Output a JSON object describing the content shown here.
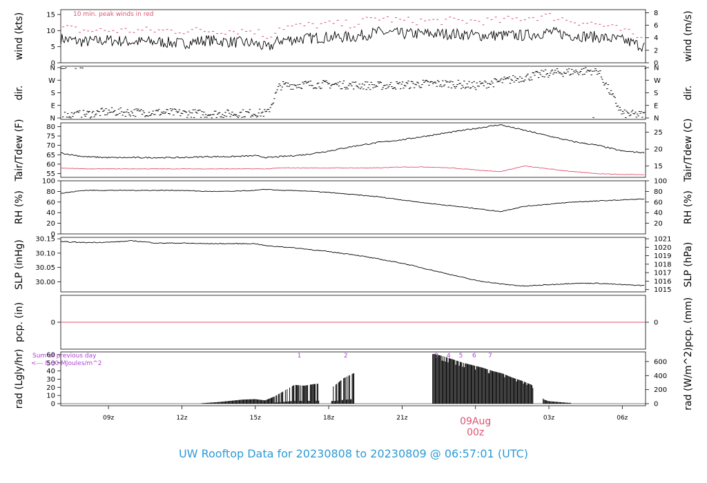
{
  "title": "UW Rooftop Data for 20230808  to  20230809 @ 06:57:01  (UTC)",
  "colors": {
    "title": "#2b9ad6",
    "peak": "#e0506e",
    "dewpoint": "#e0506e",
    "pcp_line": "#e0506e",
    "day_label": "#e0506e",
    "annotation": "#b040d8",
    "data": "#000000"
  },
  "annotations": {
    "peak_note": "10 min. peak winds in red",
    "sum_line1": "Sum of previous day",
    "sum_line2": "<--- 8.80 MJoules/m^2",
    "day_label": "09Aug",
    "day_label_z": "00z"
  },
  "chart_data": [
    {
      "type": "line",
      "name": "wind",
      "ylabel": "wind (kts)",
      "ylabel_right": "wind (m/s)",
      "ylim": [
        0,
        16.5
      ],
      "yticks": [
        "0",
        "5",
        "10",
        "15"
      ],
      "yticks_right": [
        "0",
        "2",
        "4",
        "6",
        "8"
      ],
      "x_hours": [
        7,
        8,
        9,
        10,
        11,
        12,
        13,
        14,
        15,
        15.5,
        16,
        17,
        18,
        19,
        20,
        21,
        22,
        23,
        24,
        25,
        26,
        27,
        28,
        29,
        30,
        30.95
      ],
      "series": [
        {
          "name": "wind",
          "values": [
            7.5,
            6.5,
            7,
            6.5,
            6.5,
            6,
            7,
            6.5,
            6,
            4.5,
            7,
            7.5,
            8,
            8,
            9.5,
            9,
            9,
            9,
            8.5,
            8.5,
            8.5,
            9.5,
            8.5,
            8,
            7,
            5
          ]
        },
        {
          "name": "10 min. peak winds",
          "values": [
            11,
            10,
            10,
            10,
            10,
            10,
            10,
            10,
            10,
            8,
            11,
            11.5,
            12,
            12,
            14,
            13,
            13,
            13,
            13,
            13,
            14,
            14.5,
            13,
            12,
            10,
            7
          ]
        }
      ]
    },
    {
      "type": "scatter",
      "name": "direction",
      "ylabel": "dir.",
      "ylabel_right": "dir.",
      "yticks": [
        "N",
        "E",
        "S",
        "W",
        "N"
      ],
      "x_hours": [
        7,
        8,
        9,
        10,
        11,
        12,
        13,
        14,
        15,
        15.5,
        16,
        17,
        18,
        19,
        20,
        21,
        22,
        23,
        24,
        25,
        26,
        27,
        28,
        29,
        30,
        30.95
      ],
      "values_deg": [
        20,
        25,
        45,
        40,
        40,
        35,
        30,
        30,
        35,
        35,
        230,
        240,
        240,
        235,
        230,
        235,
        245,
        245,
        230,
        260,
        290,
        320,
        330,
        340,
        30,
        20
      ]
    },
    {
      "type": "line",
      "name": "temperature",
      "ylabel": "Tair/Tdew (F)",
      "ylabel_right": "Tair/Tdew (C)",
      "ylim": [
        53,
        82
      ],
      "yticks": [
        "55",
        "60",
        "65",
        "70",
        "75",
        "80"
      ],
      "yticks_right": [
        "15",
        "20",
        "25"
      ],
      "x_hours": [
        7,
        8,
        9,
        10,
        11,
        12,
        13,
        14,
        15,
        15.5,
        16,
        17,
        18,
        19,
        20,
        21,
        22,
        23,
        24,
        25,
        26,
        27,
        28,
        29,
        30,
        30.95
      ],
      "series": [
        {
          "name": "Tair",
          "values": [
            66,
            64,
            63.5,
            63.5,
            63.5,
            63.5,
            64,
            64,
            64.5,
            63.5,
            64,
            65,
            67,
            69.5,
            71.5,
            73,
            75,
            77,
            79,
            81,
            78,
            75,
            72,
            70,
            67,
            66
          ]
        },
        {
          "name": "Tdew",
          "values": [
            58,
            57.5,
            57.5,
            57.5,
            57.5,
            57.5,
            57.5,
            57.5,
            57.5,
            57.5,
            58,
            58,
            58,
            58,
            58,
            58.5,
            58.5,
            58,
            57,
            56,
            59,
            57.5,
            56,
            55,
            54.5,
            54.5
          ]
        }
      ]
    },
    {
      "type": "line",
      "name": "relative humidity",
      "ylabel": "RH (%)",
      "ylabel_right": "RH (%)",
      "ylim": [
        0,
        100
      ],
      "yticks": [
        "0",
        "20",
        "40",
        "60",
        "80",
        "100"
      ],
      "yticks_right": [
        "20",
        "40",
        "60",
        "80",
        "100"
      ],
      "x_hours": [
        7,
        8,
        9,
        10,
        11,
        12,
        13,
        14,
        15,
        15.5,
        16,
        17,
        18,
        19,
        20,
        21,
        22,
        23,
        24,
        25,
        26,
        27,
        28,
        29,
        30,
        30.95
      ],
      "series": [
        {
          "name": "RH",
          "values": [
            76,
            82,
            82,
            82,
            82,
            82,
            80,
            80,
            82,
            84,
            82,
            81,
            78,
            74,
            70,
            64,
            58,
            53,
            48,
            42,
            52,
            56,
            60,
            62,
            64,
            66
          ]
        }
      ]
    },
    {
      "type": "line",
      "name": "sea level pressure",
      "ylabel": "SLP (inHg)",
      "ylabel_right": "SLP (hPa)",
      "ylim": [
        29.965,
        30.155
      ],
      "yticks": [
        "30.00",
        "30.05",
        "30.10",
        "30.15"
      ],
      "yticks_right": [
        "1015",
        "1016",
        "1017",
        "1018",
        "1019",
        "1020",
        "1021"
      ],
      "x_hours": [
        7,
        8,
        9,
        10,
        11,
        12,
        13,
        14,
        15,
        15.5,
        16,
        17,
        18,
        19,
        20,
        21,
        22,
        23,
        24,
        25,
        26,
        27,
        28,
        29,
        30,
        30.95
      ],
      "series": [
        {
          "name": "SLP",
          "values": [
            30.14,
            30.137,
            30.138,
            30.143,
            30.135,
            30.135,
            30.133,
            30.133,
            30.133,
            30.125,
            30.123,
            30.115,
            30.105,
            30.095,
            30.08,
            30.065,
            30.045,
            30.025,
            30.005,
            29.993,
            29.985,
            29.99,
            29.995,
            29.995,
            29.99,
            29.987
          ]
        }
      ]
    },
    {
      "type": "line",
      "name": "precipitation",
      "ylabel": "pcp. (in)",
      "ylabel_right": "pcp. (mm)",
      "yticks": [
        "0"
      ],
      "yticks_right": [
        "0"
      ],
      "values": [
        0
      ]
    },
    {
      "type": "bar",
      "name": "radiation",
      "ylabel": "rad (Lgly/hr)",
      "ylabel_right": "rad (W/m^2)",
      "ylim": [
        0,
        60
      ],
      "yticks": [
        "0",
        "10",
        "20",
        "30",
        "40",
        "50",
        "60"
      ],
      "yticks_right": [
        "0",
        "200",
        "400",
        "600"
      ],
      "x_hours": [
        12.8,
        13.5,
        14,
        14.5,
        15,
        15.4,
        15.8,
        16.2,
        16.6,
        17,
        17.4,
        17.8,
        18.2,
        18.6,
        19,
        22.3,
        22.7,
        23.1,
        23.5,
        23.9,
        24.3,
        24.7,
        25.1,
        25.5,
        25.9,
        26.3,
        26.8,
        27,
        27.4,
        27.8
      ],
      "values": [
        0.5,
        2,
        3.5,
        5,
        5.5,
        4,
        9,
        16,
        23,
        22,
        24,
        25,
        21,
        31,
        37,
        61,
        58,
        54,
        50,
        47,
        44,
        40,
        37,
        32,
        28,
        23,
        5,
        3,
        2,
        1
      ],
      "hour_marks": [
        "1",
        "2",
        "3",
        "4",
        "5",
        "6",
        "7"
      ],
      "hour_mark_x": [
        16.8,
        18.7,
        22.4,
        22.9,
        23.4,
        23.95,
        24.6
      ]
    }
  ],
  "x_axis": {
    "ticks": [
      "09z",
      "12z",
      "15z",
      "18z",
      "21z",
      "03z",
      "06z"
    ],
    "tick_hours": [
      9,
      12,
      15,
      18,
      21,
      27,
      30
    ],
    "day_hour": 24,
    "xlim_hours": [
      7.05,
      30.95
    ]
  }
}
